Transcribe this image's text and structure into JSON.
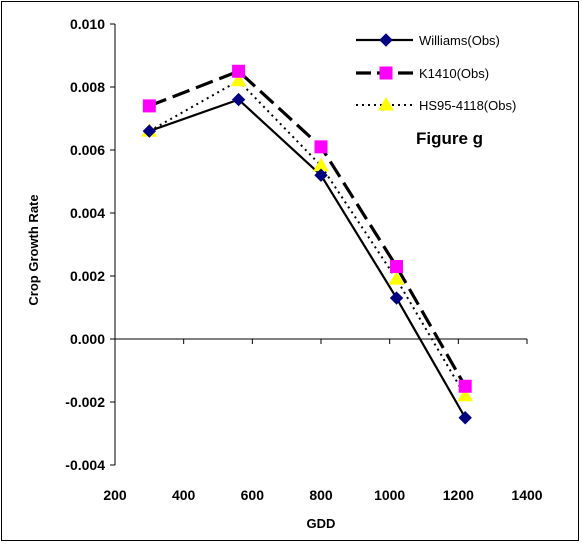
{
  "chart_data": {
    "type": "line",
    "title": "",
    "xlabel": "GDD",
    "ylabel": "Crop Growth Rate",
    "xlim": [
      200,
      1400
    ],
    "ylim": [
      -0.004,
      0.01
    ],
    "x_ticks": [
      200,
      400,
      600,
      800,
      1000,
      1200,
      1400
    ],
    "y_ticks": [
      -0.004,
      -0.002,
      0.0,
      0.002,
      0.004,
      0.006,
      0.008,
      0.01
    ],
    "x_tick_labels": [
      "200",
      "400",
      "600",
      "800",
      "1000",
      "1200",
      "1400"
    ],
    "y_tick_labels": [
      "-0.004",
      "-0.002",
      "0.000",
      "0.002",
      "0.004",
      "0.006",
      "0.008",
      "0.010"
    ],
    "grid": false,
    "legend_position": "top-right",
    "annotation": "Figure g",
    "series": [
      {
        "name": "Williams(Obs)",
        "line_style": "solid",
        "line_color": "#000000",
        "marker": "diamond",
        "marker_color": "#000080",
        "x": [
          300,
          560,
          800,
          1020,
          1220
        ],
        "y": [
          0.0066,
          0.0076,
          0.0052,
          0.0013,
          -0.0025
        ]
      },
      {
        "name": "K1410(Obs)",
        "line_style": "long-dash",
        "line_color": "#000000",
        "marker": "square",
        "marker_color": "#FF00FF",
        "x": [
          300,
          560,
          800,
          1020,
          1220
        ],
        "y": [
          0.0074,
          0.0085,
          0.0061,
          0.0023,
          -0.0015
        ]
      },
      {
        "name": "HS95-4118(Obs)",
        "line_style": "dotted",
        "line_color": "#000000",
        "marker": "triangle",
        "marker_color": "#FFFF00",
        "x": [
          300,
          560,
          800,
          1020,
          1220
        ],
        "y": [
          0.0066,
          0.0082,
          0.0055,
          0.0019,
          -0.0018
        ]
      }
    ]
  }
}
